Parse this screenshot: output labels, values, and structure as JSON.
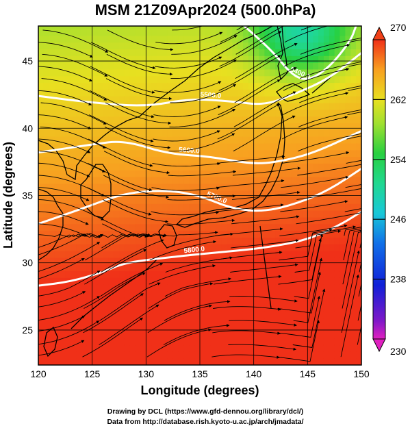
{
  "chart_data": {
    "type": "heatmap",
    "title": "MSM 21Z09Apr2024 (500.0hPa)",
    "xlabel": "Longitude (degrees)",
    "ylabel": "Latitude  (degrees)",
    "xlim": [
      120,
      150
    ],
    "ylim": [
      22.4,
      47.6
    ],
    "x_ticks": [
      120,
      125,
      130,
      135,
      140,
      145,
      150
    ],
    "y_ticks": [
      25,
      30,
      35,
      40,
      45
    ],
    "grid": true,
    "colorbar": {
      "min": 230,
      "max": 270,
      "ticks": [
        230,
        238,
        246,
        254,
        262,
        270
      ]
    },
    "contours": [
      {
        "label": "5400.0",
        "points": [
          [
            138.5,
            48
          ],
          [
            140,
            47
          ],
          [
            142,
            45.5
          ],
          [
            143.5,
            44
          ],
          [
            145,
            43.5
          ],
          [
            147,
            44.5
          ],
          [
            149,
            46.5
          ],
          [
            149.5,
            47.6
          ]
        ]
      },
      {
        "label": "5500.0",
        "points": [
          [
            120,
            42.4
          ],
          [
            125,
            41.9
          ],
          [
            130,
            41.6
          ],
          [
            134,
            42.2
          ],
          [
            138,
            42.0
          ],
          [
            141,
            41.7
          ],
          [
            144,
            42.6
          ],
          [
            147,
            43.7
          ],
          [
            150,
            45.6
          ]
        ]
      },
      {
        "label": "5600.0",
        "points": [
          [
            120,
            38.2
          ],
          [
            125,
            38.8
          ],
          [
            128,
            39.1
          ],
          [
            132,
            38.1
          ],
          [
            136,
            37.9
          ],
          [
            140,
            37.3
          ],
          [
            143,
            37.6
          ],
          [
            146,
            38.3
          ],
          [
            150,
            39.8
          ]
        ]
      },
      {
        "label": "5700.0",
        "points": [
          [
            120,
            32.9
          ],
          [
            124,
            34.0
          ],
          [
            128,
            35.2
          ],
          [
            132,
            35.4
          ],
          [
            135,
            35.0
          ],
          [
            138,
            34.0
          ],
          [
            141,
            33.8
          ],
          [
            144,
            34.4
          ],
          [
            147,
            35.4
          ],
          [
            150,
            37.0
          ]
        ]
      },
      {
        "label": "5800.0",
        "points": [
          [
            120,
            28.3
          ],
          [
            123,
            28.6
          ],
          [
            126,
            29.3
          ],
          [
            128,
            30.0
          ],
          [
            132,
            30.4
          ],
          [
            137,
            30.8
          ],
          [
            141,
            31.1
          ],
          [
            145,
            31.7
          ],
          [
            148,
            32.8
          ],
          [
            150,
            33.8
          ]
        ]
      }
    ],
    "credits": [
      "Drawing by DCL (https://www.gfd-dennou.org/library/dcl/)",
      "Data from http://database.rish.kyoto-u.ac.jp/arch/jmadata/"
    ]
  }
}
